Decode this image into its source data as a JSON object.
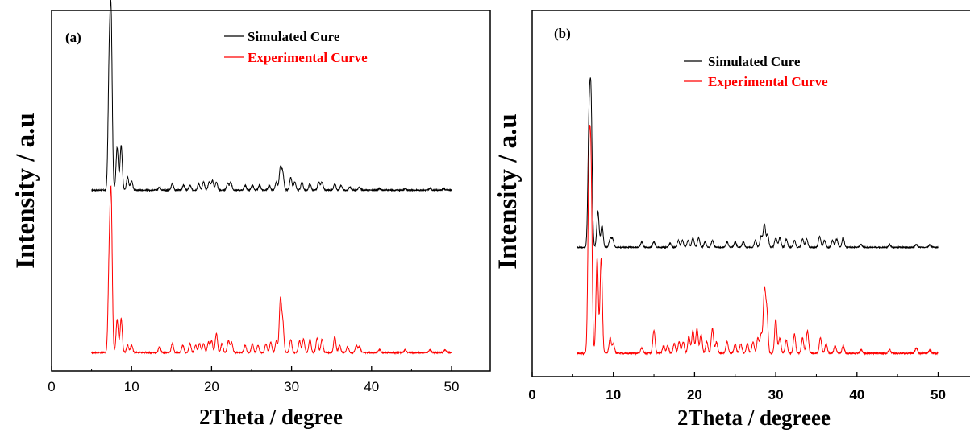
{
  "chart_data": [
    {
      "type": "line",
      "panel_label": "(a)",
      "xlabel": "2Theta / degree",
      "ylabel": "Intensity / a.u",
      "xlim": [
        0,
        55
      ],
      "x_ticks": [
        0,
        10,
        20,
        30,
        40,
        50
      ],
      "y_ticks_shown": false,
      "legend_position": "top-right",
      "series": [
        {
          "name": "Simulated Cure",
          "color": "#000000",
          "offset": 1.0,
          "x_range": [
            5,
            50
          ],
          "peaks": [
            [
              7.2,
              0.72
            ],
            [
              7.45,
              1.0
            ],
            [
              8.2,
              0.27
            ],
            [
              8.7,
              0.28
            ],
            [
              9.5,
              0.08
            ],
            [
              10.0,
              0.06
            ],
            [
              13.5,
              0.02
            ],
            [
              15.1,
              0.04
            ],
            [
              16.5,
              0.03
            ],
            [
              17.3,
              0.03
            ],
            [
              18.4,
              0.04
            ],
            [
              19.0,
              0.05
            ],
            [
              19.7,
              0.05
            ],
            [
              20.1,
              0.06
            ],
            [
              20.6,
              0.05
            ],
            [
              22.0,
              0.04
            ],
            [
              22.4,
              0.05
            ],
            [
              24.2,
              0.03
            ],
            [
              25.1,
              0.03
            ],
            [
              26.0,
              0.03
            ],
            [
              27.2,
              0.03
            ],
            [
              28.1,
              0.05
            ],
            [
              28.6,
              0.14
            ],
            [
              28.9,
              0.11
            ],
            [
              29.9,
              0.08
            ],
            [
              30.4,
              0.05
            ],
            [
              31.3,
              0.05
            ],
            [
              32.3,
              0.04
            ],
            [
              33.4,
              0.05
            ],
            [
              33.8,
              0.05
            ],
            [
              35.4,
              0.04
            ],
            [
              36.2,
              0.03
            ],
            [
              37.3,
              0.02
            ],
            [
              38.5,
              0.02
            ],
            [
              41.0,
              0.01
            ],
            [
              44.2,
              0.01
            ],
            [
              47.3,
              0.01
            ],
            [
              49.0,
              0.01
            ]
          ]
        },
        {
          "name": "Experimental Curve",
          "color": "#ff0000",
          "offset": 0.0,
          "x_range": [
            5,
            50
          ],
          "peaks": [
            [
              7.2,
              0.55
            ],
            [
              7.45,
              0.98
            ],
            [
              8.2,
              0.22
            ],
            [
              8.7,
              0.23
            ],
            [
              9.5,
              0.05
            ],
            [
              10.0,
              0.05
            ],
            [
              13.5,
              0.04
            ],
            [
              15.1,
              0.06
            ],
            [
              16.4,
              0.05
            ],
            [
              17.3,
              0.06
            ],
            [
              18.0,
              0.05
            ],
            [
              18.5,
              0.06
            ],
            [
              19.0,
              0.06
            ],
            [
              19.6,
              0.07
            ],
            [
              20.0,
              0.08
            ],
            [
              20.6,
              0.13
            ],
            [
              21.3,
              0.06
            ],
            [
              22.1,
              0.08
            ],
            [
              22.5,
              0.07
            ],
            [
              24.2,
              0.05
            ],
            [
              25.1,
              0.06
            ],
            [
              25.8,
              0.05
            ],
            [
              26.8,
              0.06
            ],
            [
              27.4,
              0.07
            ],
            [
              28.1,
              0.08
            ],
            [
              28.6,
              0.35
            ],
            [
              28.9,
              0.2
            ],
            [
              29.9,
              0.09
            ],
            [
              31.0,
              0.08
            ],
            [
              31.5,
              0.09
            ],
            [
              32.3,
              0.09
            ],
            [
              33.2,
              0.1
            ],
            [
              33.8,
              0.09
            ],
            [
              35.4,
              0.11
            ],
            [
              36.0,
              0.05
            ],
            [
              37.0,
              0.04
            ],
            [
              38.1,
              0.05
            ],
            [
              38.5,
              0.04
            ],
            [
              41.0,
              0.02
            ],
            [
              44.2,
              0.02
            ],
            [
              47.3,
              0.02
            ],
            [
              49.2,
              0.02
            ]
          ]
        }
      ]
    },
    {
      "type": "line",
      "panel_label": "(b)",
      "xlabel": "2Theta / degreee",
      "ylabel": "Intensity / a.u",
      "xlim": [
        0,
        54
      ],
      "x_ticks": [
        0,
        10,
        20,
        30,
        40,
        50
      ],
      "y_ticks_shown": false,
      "legend_position": "top-right",
      "series": [
        {
          "name": "Simulated Cure",
          "color": "#000000",
          "offset": 1.0,
          "x_range": [
            5.5,
            50
          ],
          "peaks": [
            [
              7.0,
              0.82
            ],
            [
              7.25,
              1.0
            ],
            [
              8.1,
              0.26
            ],
            [
              8.6,
              0.16
            ],
            [
              9.6,
              0.06
            ],
            [
              9.9,
              0.06
            ],
            [
              13.5,
              0.04
            ],
            [
              15.0,
              0.04
            ],
            [
              17.0,
              0.03
            ],
            [
              18.0,
              0.05
            ],
            [
              18.5,
              0.05
            ],
            [
              19.2,
              0.05
            ],
            [
              19.8,
              0.07
            ],
            [
              20.5,
              0.07
            ],
            [
              21.3,
              0.04
            ],
            [
              22.2,
              0.05
            ],
            [
              24.0,
              0.04
            ],
            [
              25.0,
              0.04
            ],
            [
              26.0,
              0.04
            ],
            [
              27.5,
              0.05
            ],
            [
              28.2,
              0.08
            ],
            [
              28.6,
              0.17
            ],
            [
              29.0,
              0.09
            ],
            [
              30.0,
              0.07
            ],
            [
              30.5,
              0.07
            ],
            [
              31.3,
              0.06
            ],
            [
              32.3,
              0.05
            ],
            [
              33.3,
              0.06
            ],
            [
              33.8,
              0.06
            ],
            [
              35.4,
              0.08
            ],
            [
              36.0,
              0.05
            ],
            [
              37.0,
              0.05
            ],
            [
              37.5,
              0.06
            ],
            [
              38.3,
              0.07
            ],
            [
              40.5,
              0.02
            ],
            [
              44.0,
              0.02
            ],
            [
              47.3,
              0.02
            ],
            [
              49.0,
              0.02
            ]
          ]
        },
        {
          "name": "Experimental Curve",
          "color": "#ff0000",
          "offset": 0.0,
          "x_range": [
            5.5,
            50
          ],
          "peaks": [
            [
              7.0,
              0.9
            ],
            [
              7.25,
              0.88
            ],
            [
              8.0,
              0.5
            ],
            [
              8.5,
              0.5
            ],
            [
              9.6,
              0.08
            ],
            [
              10.0,
              0.05
            ],
            [
              13.5,
              0.03
            ],
            [
              15.0,
              0.12
            ],
            [
              16.2,
              0.04
            ],
            [
              16.7,
              0.04
            ],
            [
              17.5,
              0.05
            ],
            [
              18.1,
              0.06
            ],
            [
              18.6,
              0.06
            ],
            [
              19.3,
              0.09
            ],
            [
              19.8,
              0.12
            ],
            [
              20.3,
              0.13
            ],
            [
              20.8,
              0.1
            ],
            [
              21.5,
              0.06
            ],
            [
              22.2,
              0.13
            ],
            [
              22.7,
              0.06
            ],
            [
              24.0,
              0.06
            ],
            [
              25.0,
              0.05
            ],
            [
              25.7,
              0.05
            ],
            [
              26.5,
              0.05
            ],
            [
              27.2,
              0.06
            ],
            [
              27.8,
              0.08
            ],
            [
              28.2,
              0.1
            ],
            [
              28.6,
              0.32
            ],
            [
              28.9,
              0.22
            ],
            [
              30.0,
              0.18
            ],
            [
              30.5,
              0.08
            ],
            [
              31.3,
              0.07
            ],
            [
              32.3,
              0.1
            ],
            [
              33.3,
              0.08
            ],
            [
              33.9,
              0.12
            ],
            [
              35.5,
              0.08
            ],
            [
              36.2,
              0.05
            ],
            [
              37.3,
              0.04
            ],
            [
              38.3,
              0.04
            ],
            [
              40.5,
              0.02
            ],
            [
              44.0,
              0.02
            ],
            [
              47.3,
              0.03
            ],
            [
              49.0,
              0.02
            ]
          ]
        }
      ]
    }
  ]
}
